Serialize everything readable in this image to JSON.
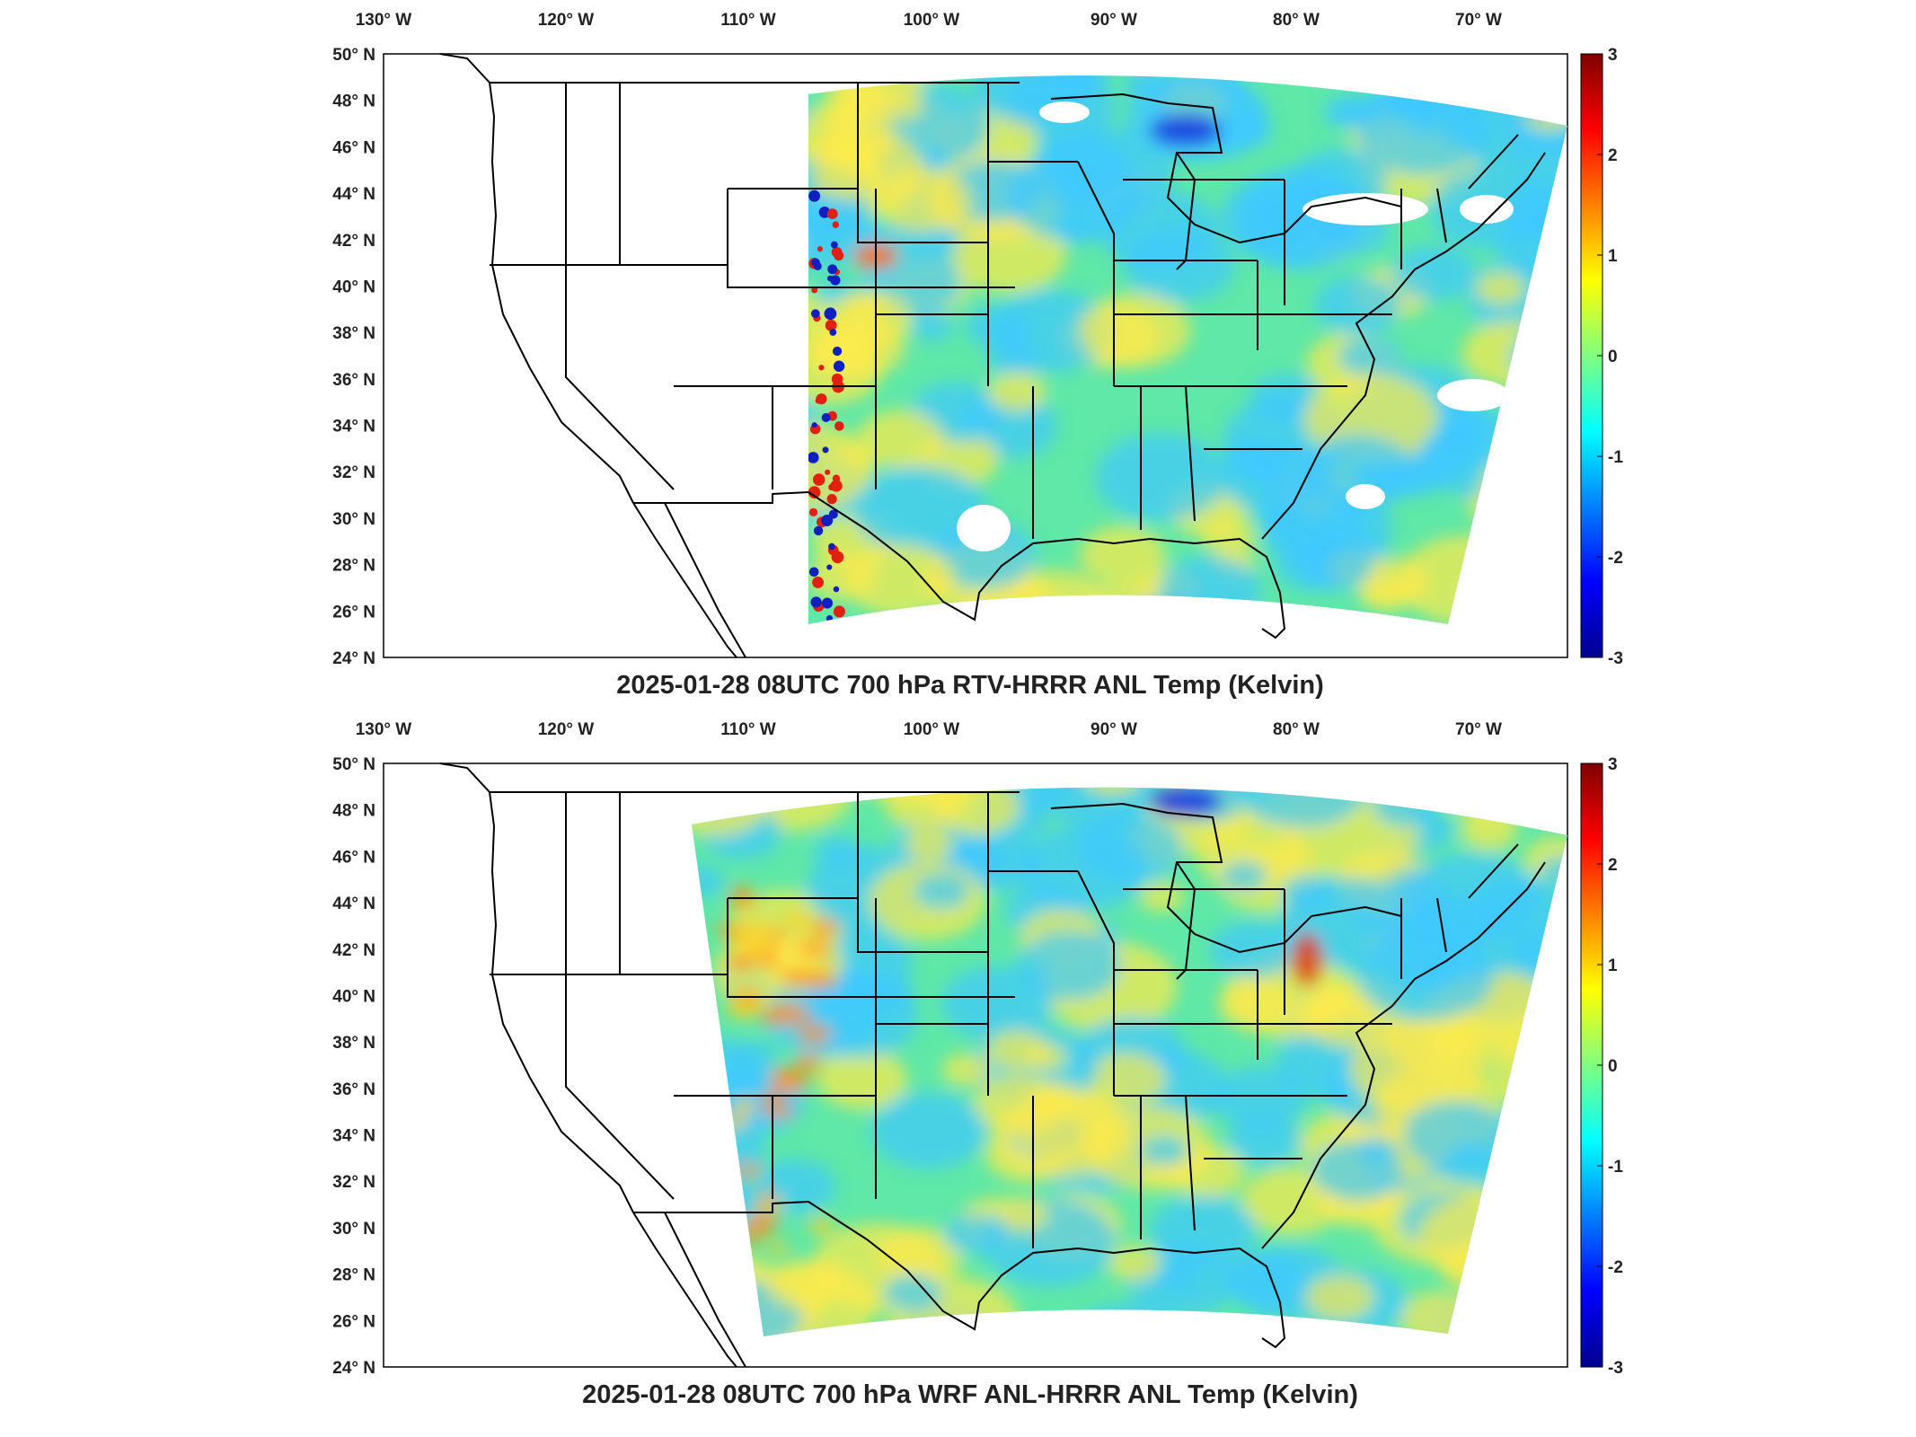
{
  "panels": [
    {
      "title": "2025-01-28 08UTC 700 hPa RTV-HRRR ANL Temp (Kelvin)",
      "variant": "rtv"
    },
    {
      "title": "2025-01-28 08UTC 700 hPa WRF ANL-HRRR ANL Temp (Kelvin)",
      "variant": "wrf"
    }
  ],
  "lon_labels": [
    "130° W",
    "120° W",
    "110° W",
    "100° W",
    "90° W",
    "80° W",
    "70° W"
  ],
  "lat_labels": [
    "50° N",
    "48° N",
    "46° N",
    "44° N",
    "42° N",
    "40° N",
    "38° N",
    "36° N",
    "34° N",
    "32° N",
    "30° N",
    "28° N",
    "26° N",
    "24° N"
  ],
  "colorbar": {
    "ticks": [
      "3",
      "2",
      "1",
      "0",
      "-1",
      "-2",
      "-3"
    ],
    "range": [
      -3,
      3
    ],
    "colormap": "jet",
    "colors": [
      "#7f0000",
      "#ff0000",
      "#ff8000",
      "#ffff00",
      "#80ff80",
      "#00ffff",
      "#0080ff",
      "#0000ff",
      "#00008f"
    ]
  },
  "map_colors": {
    "field_base": "#5fe8a8",
    "field_warm": "#ffe94a",
    "field_cool": "#3fc8ff",
    "border": "#000000"
  }
}
